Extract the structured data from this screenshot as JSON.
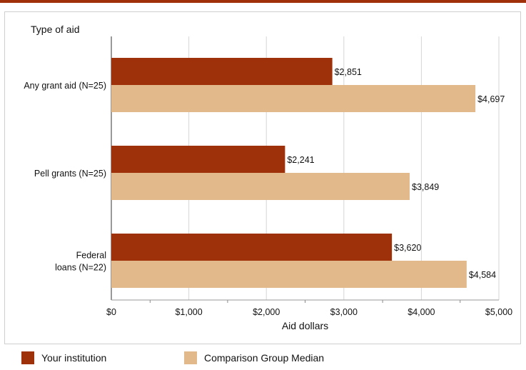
{
  "colors": {
    "top_rule": "#a0300a",
    "your_institution": "#9e3109",
    "comparison_median": "#e1b98a",
    "grid": "#d6d6d6",
    "axis": "#333333"
  },
  "legend": {
    "items": [
      {
        "label": "Your institution",
        "color": "#9e3109"
      },
      {
        "label": "Comparison Group Median",
        "color": "#e1b98a"
      }
    ]
  },
  "chart_data": {
    "type": "bar",
    "orientation": "horizontal",
    "title": "",
    "y_axis_title": "Type of aid",
    "xlabel": "Aid dollars",
    "xlim": [
      0,
      5000
    ],
    "x_tick_values": [
      0,
      1000,
      2000,
      3000,
      4000,
      5000
    ],
    "x_tick_labels": [
      "$0",
      "$1,000",
      "$2,000",
      "$3,000",
      "$4,000",
      "$5,000"
    ],
    "grid": true,
    "legend_position": "bottom",
    "categories": [
      [
        "Any grant aid (N=25)"
      ],
      [
        "Pell grants (N=25)"
      ],
      [
        "Federal",
        "loans (N=22)"
      ]
    ],
    "series": [
      {
        "name": "Your institution",
        "values": [
          2851,
          2241,
          3620
        ],
        "labels": [
          "$2,851",
          "$2,241",
          "$3,620"
        ]
      },
      {
        "name": "Comparison Group Median",
        "values": [
          4697,
          3849,
          4584
        ],
        "labels": [
          "$4,697",
          "$3,849",
          "$4,584"
        ]
      }
    ]
  }
}
